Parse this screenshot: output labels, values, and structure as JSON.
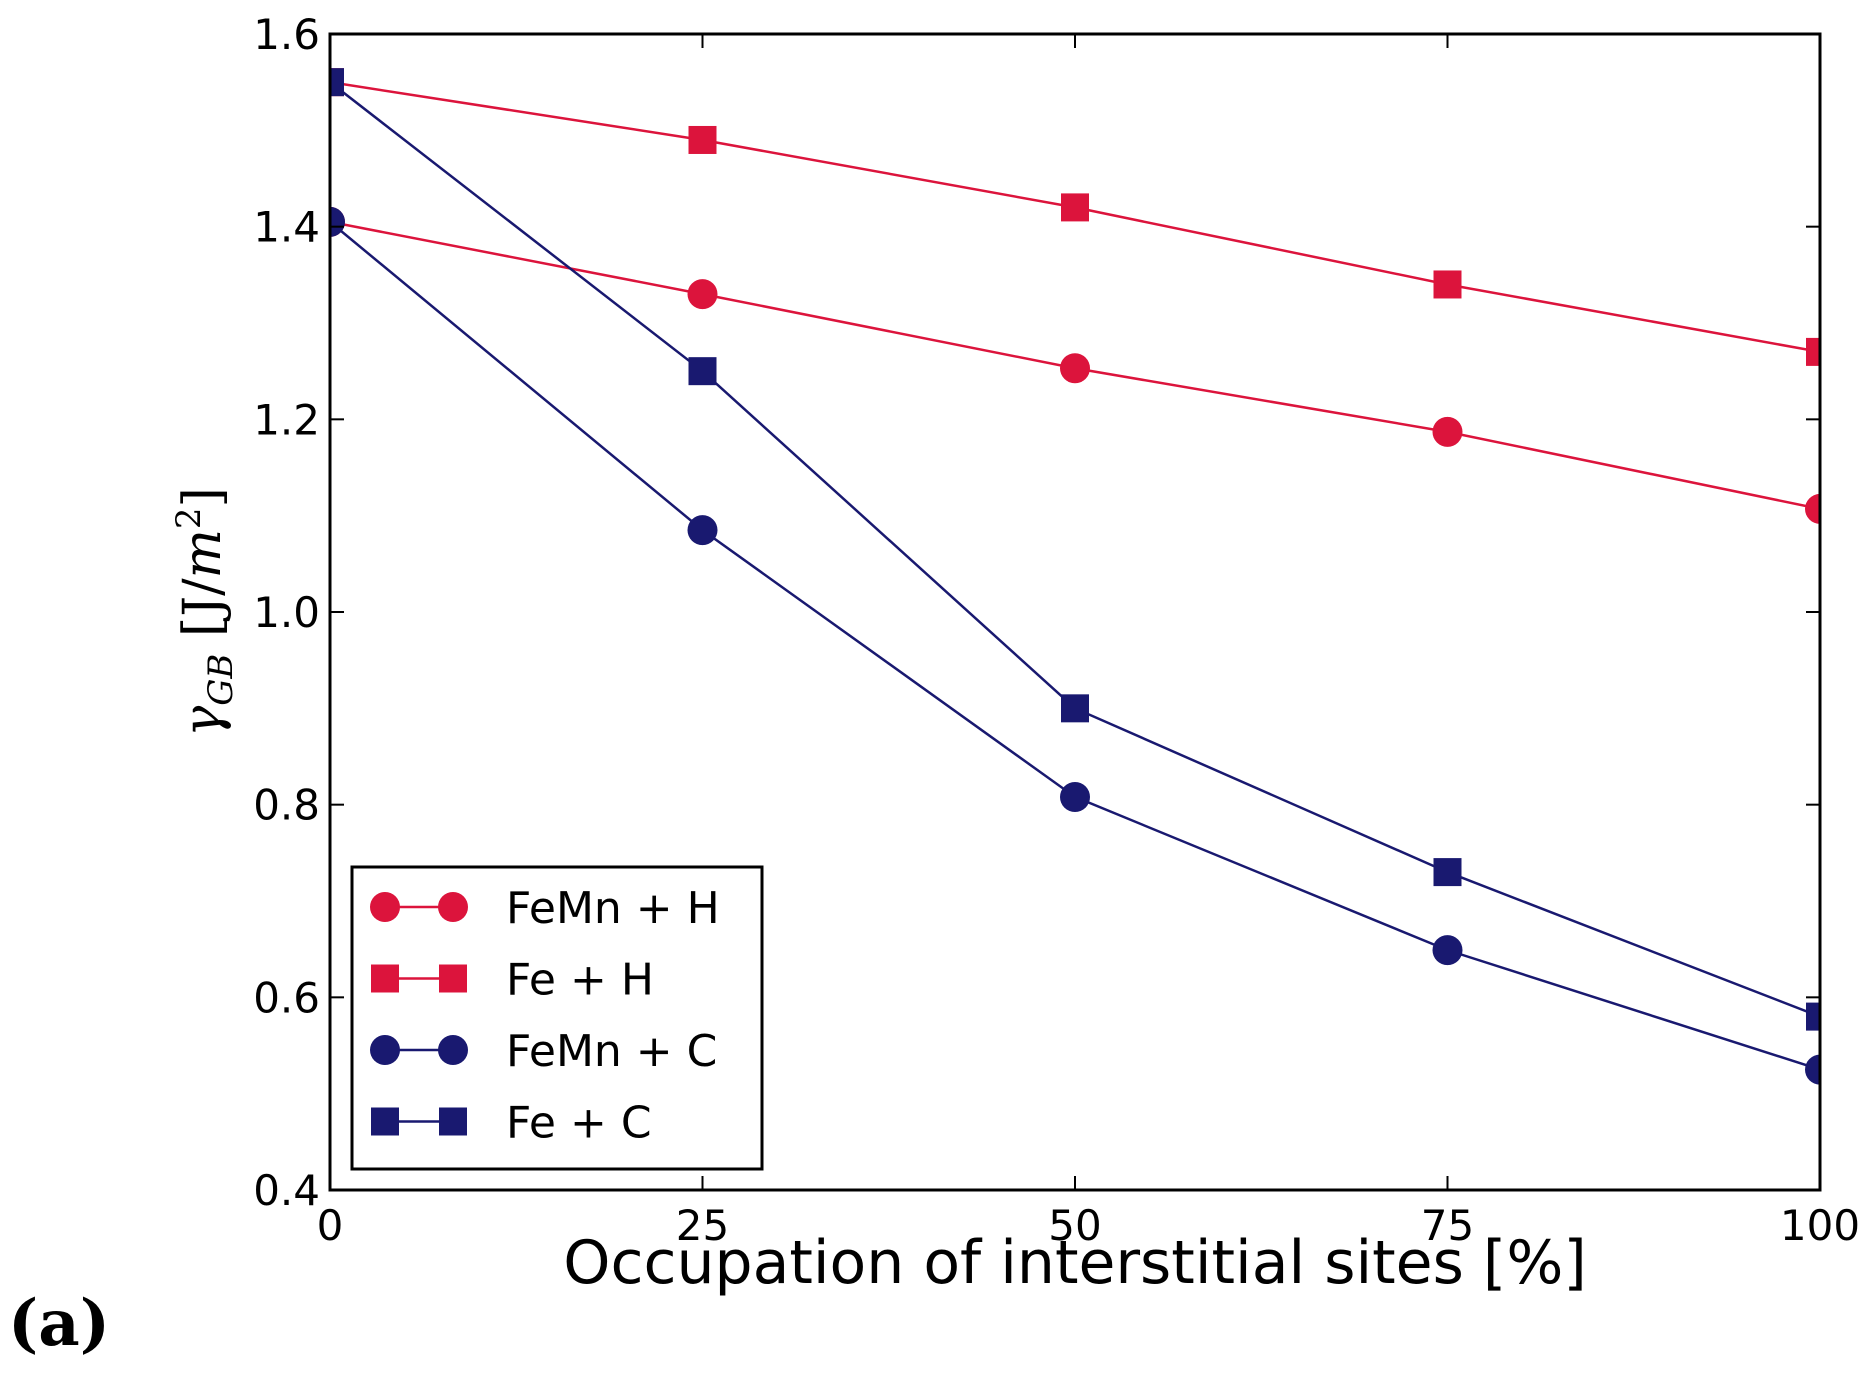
{
  "chart_data": {
    "type": "line",
    "panel_label": "(a)",
    "xlabel": "Occupation of interstitial sites [%]",
    "ylabel": {
      "symbol": "γ",
      "subscript": "GB",
      "unit_prefix": " [J/",
      "unit_var": "m",
      "unit_exp": "2",
      "unit_suffix": "]"
    },
    "xlim": [
      0,
      100
    ],
    "ylim": [
      0.4,
      1.6
    ],
    "xticks": [
      0,
      25,
      50,
      75,
      100
    ],
    "xtick_labels": [
      "0",
      "25",
      "50",
      "75",
      "100"
    ],
    "yticks": [
      0.4,
      0.6,
      0.8,
      1.0,
      1.2,
      1.4,
      1.6
    ],
    "ytick_labels": [
      "0.4",
      "0.6",
      "0.8",
      "1.0",
      "1.2",
      "1.4",
      "1.6"
    ],
    "x": [
      0,
      25,
      50,
      75,
      100
    ],
    "legend_position": "lower-left",
    "series": [
      {
        "name": "FeMn + H",
        "color": "#DC143C",
        "marker": "circle",
        "values": [
          1.405,
          1.33,
          1.253,
          1.187,
          1.107
        ]
      },
      {
        "name": "Fe + H",
        "color": "#DC143C",
        "marker": "square",
        "values": [
          1.55,
          1.49,
          1.42,
          1.34,
          1.27
        ]
      },
      {
        "name": "FeMn + C",
        "color": "#191970",
        "marker": "circle",
        "values": [
          1.405,
          1.085,
          0.808,
          0.649,
          0.525
        ]
      },
      {
        "name": "Fe + C",
        "color": "#191970",
        "marker": "square",
        "values": [
          1.55,
          1.25,
          0.9,
          0.73,
          0.58
        ]
      }
    ]
  }
}
